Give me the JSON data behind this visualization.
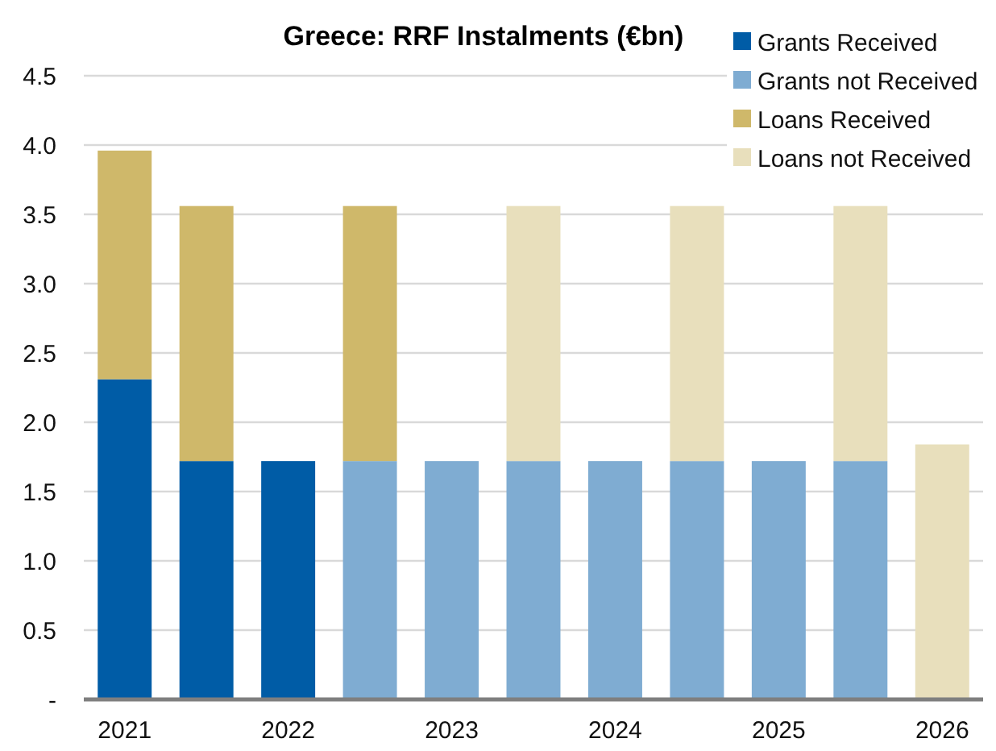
{
  "chart_data": {
    "type": "bar",
    "title": "Greece: RRF Instalments (€bn)",
    "stacked": true,
    "categories": [
      "2021",
      null,
      "2022",
      null,
      "2023",
      null,
      "2024",
      null,
      "2025",
      null,
      "2026"
    ],
    "series": [
      {
        "name": "Grants Received",
        "color": "#005ca6",
        "values": [
          2.31,
          1.72,
          1.72,
          null,
          null,
          null,
          null,
          null,
          null,
          null,
          null
        ]
      },
      {
        "name": "Grants not Received",
        "color": "#7facd2",
        "values": [
          null,
          null,
          null,
          1.72,
          1.72,
          1.72,
          1.72,
          1.72,
          1.72,
          1.72,
          null
        ]
      },
      {
        "name": "Loans Received",
        "color": "#cfb86a",
        "values": [
          1.65,
          1.84,
          null,
          1.84,
          null,
          null,
          null,
          null,
          null,
          null,
          null
        ]
      },
      {
        "name": "Loans not Received",
        "color": "#e8dfbc",
        "values": [
          null,
          null,
          null,
          null,
          null,
          1.84,
          null,
          1.84,
          null,
          1.84,
          1.84
        ]
      }
    ],
    "ylim": [
      0,
      4.5
    ],
    "yticks": [
      {
        "value": 0,
        "label": "-"
      },
      0.5,
      {
        "value": 1,
        "label": "1.0"
      },
      1.5,
      {
        "value": 2,
        "label": "2.0"
      },
      2.5,
      {
        "value": 3,
        "label": "3.0"
      },
      3.5,
      {
        "value": 4,
        "label": "4.0"
      },
      4.5
    ],
    "grid": "y",
    "legend": "top right"
  }
}
